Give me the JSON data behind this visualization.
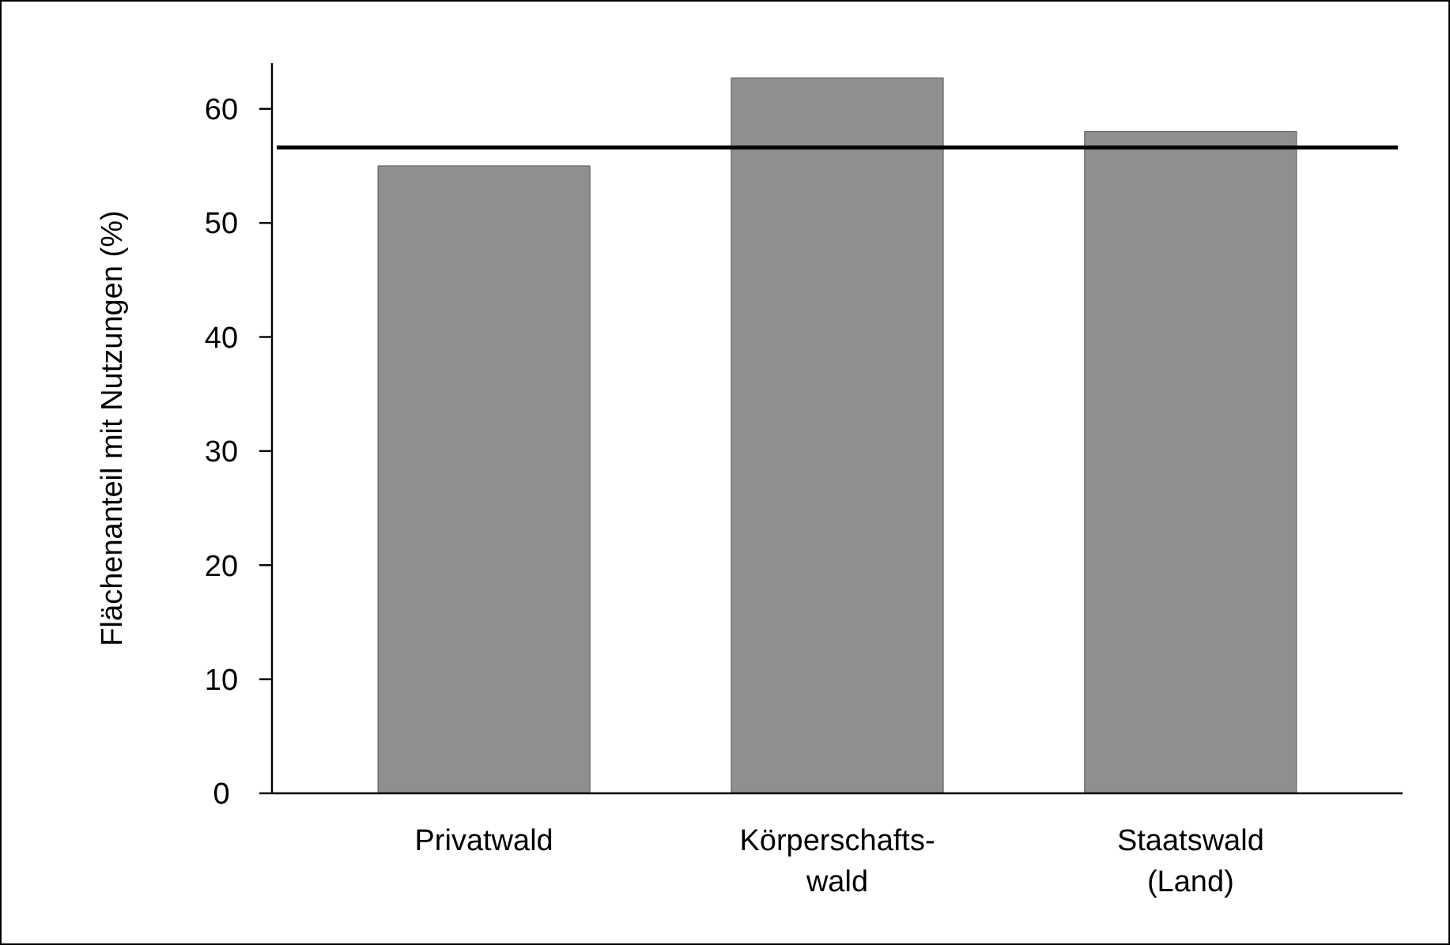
{
  "chart_data": {
    "type": "bar",
    "ylabel": "Flächenanteil mit Nutzungen (%)",
    "categories": [
      "Privatwald",
      "Körperschafts-\nwald",
      "Staatswald\n(Land)"
    ],
    "values": [
      55,
      62.7,
      58
    ],
    "color": "#8f8f8f",
    "ylim": [
      0,
      64
    ],
    "yticks": [
      0,
      10,
      20,
      30,
      40,
      50,
      60
    ],
    "grid": false,
    "ref_lines": [
      {
        "axis": "y",
        "value": 56.6,
        "color": "#000000"
      }
    ]
  }
}
